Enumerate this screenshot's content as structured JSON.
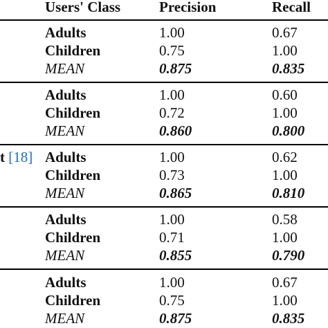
{
  "header": {
    "class_label": "Users' Class",
    "precision_label": "Precision",
    "recall_label": "Recall"
  },
  "row_fragment": {
    "text": "t",
    "cite_open": "[",
    "cite_num": "18",
    "cite_close": "]"
  },
  "groups": [
    {
      "rows": [
        {
          "label": "Adults",
          "precision": "1.00",
          "recall": "0.67"
        },
        {
          "label": "Children",
          "precision": "0.75",
          "recall": "1.00"
        },
        {
          "label": "MEAN",
          "precision": "0.875",
          "recall": "0.835"
        }
      ]
    },
    {
      "rows": [
        {
          "label": "Adults",
          "precision": "1.00",
          "recall": "0.60"
        },
        {
          "label": "Children",
          "precision": "0.72",
          "recall": "1.00"
        },
        {
          "label": "MEAN",
          "precision": "0.860",
          "recall": "0.800"
        }
      ]
    },
    {
      "rows": [
        {
          "label": "Adults",
          "precision": "1.00",
          "recall": "0.62"
        },
        {
          "label": "Children",
          "precision": "0.73",
          "recall": "1.00"
        },
        {
          "label": "MEAN",
          "precision": "0.865",
          "recall": "0.810"
        }
      ]
    },
    {
      "rows": [
        {
          "label": "Adults",
          "precision": "1.00",
          "recall": "0.58"
        },
        {
          "label": "Children",
          "precision": "0.71",
          "recall": "1.00"
        },
        {
          "label": "MEAN",
          "precision": "0.855",
          "recall": "0.790"
        }
      ]
    },
    {
      "rows": [
        {
          "label": "Adults",
          "precision": "1.00",
          "recall": "0.67"
        },
        {
          "label": "Children",
          "precision": "0.75",
          "recall": "1.00"
        },
        {
          "label": "MEAN",
          "precision": "0.875",
          "recall": "0.835"
        }
      ]
    }
  ]
}
